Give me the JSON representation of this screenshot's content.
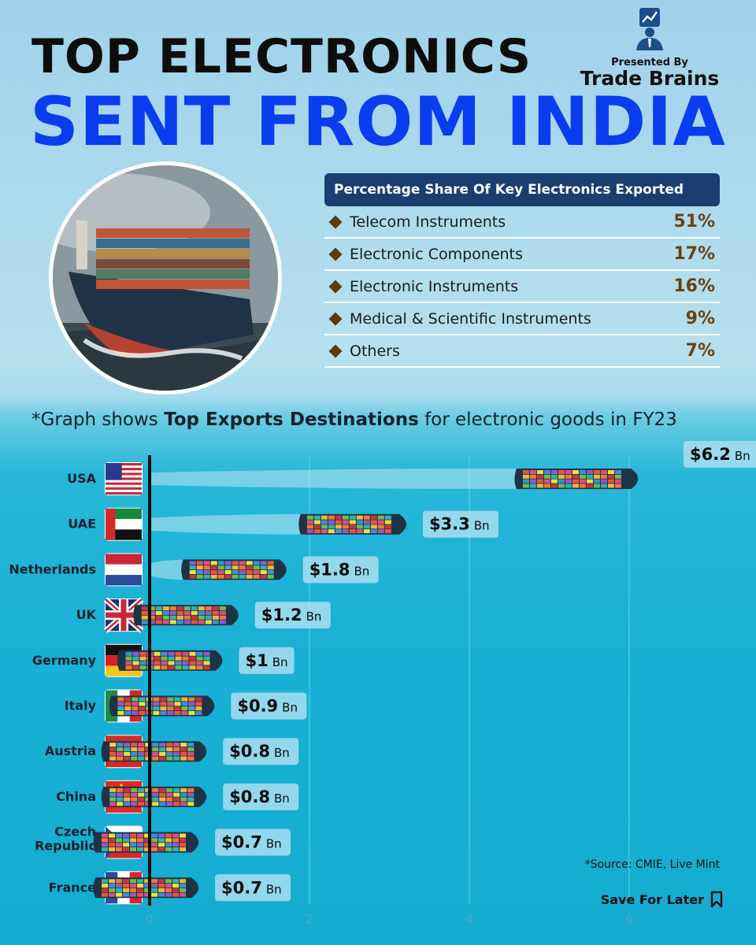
{
  "header": {
    "title_line1": "TOP ELECTRONICS",
    "title_line2": "SENT FROM INDIA",
    "presented_by": "Presented By",
    "brand": "Trade Brains"
  },
  "share_table": {
    "heading": "Percentage Share Of Key Electronics Exported",
    "rows": [
      {
        "name": "Telecom Instruments",
        "value": "51%"
      },
      {
        "name": "Electronic Components",
        "value": "17%"
      },
      {
        "name": "Electronic Instruments",
        "value": "16%"
      },
      {
        "name": "Medical & Scientific Instruments",
        "value": "9%"
      },
      {
        "name": "Others",
        "value": "7%"
      }
    ]
  },
  "subtitle": {
    "prefix": "*Graph shows ",
    "bold": "Top Exports Destinations",
    "suffix": " for electronic goods in FY23"
  },
  "chart_data": {
    "type": "bar",
    "orientation": "horizontal",
    "categories": [
      "USA",
      "UAE",
      "Netherlands",
      "UK",
      "Germany",
      "Italy",
      "Austria",
      "China",
      "Czech Republic",
      "France"
    ],
    "values": [
      6.2,
      3.3,
      1.8,
      1.2,
      1,
      0.9,
      0.8,
      0.8,
      0.7,
      0.7
    ],
    "labels": [
      "$6.2",
      "$3.3",
      "$1.8",
      "$1.2",
      "$1",
      "$0.9",
      "$0.8",
      "$0.8",
      "$0.7",
      "$0.7"
    ],
    "unit_label": "Bn",
    "xticks": [
      0,
      2,
      4,
      6
    ],
    "xlim": [
      0,
      7.7
    ],
    "grid": true
  },
  "footer": {
    "source": "*Source: CMIE, Live Mint",
    "save": "Save For Later"
  },
  "icons": {
    "brand_logo": "presenter-chart-icon",
    "bullet": "diamond-icon",
    "save": "bookmark-icon"
  },
  "colors": {
    "title_dark": "#0d0d0d",
    "title_blue": "#0a3cf0",
    "table_header": "#1b3d70",
    "value_brown": "#6a4212",
    "ship_hull": "#1f3346"
  }
}
